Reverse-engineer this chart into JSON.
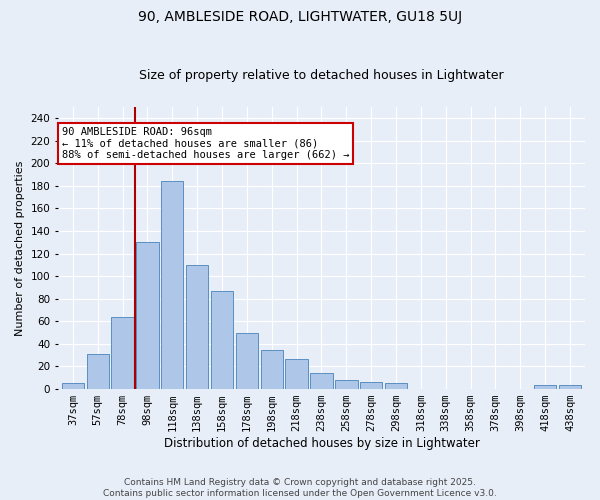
{
  "title": "90, AMBLESIDE ROAD, LIGHTWATER, GU18 5UJ",
  "subtitle": "Size of property relative to detached houses in Lightwater",
  "xlabel": "Distribution of detached houses by size in Lightwater",
  "ylabel": "Number of detached properties",
  "bar_labels": [
    "37sqm",
    "57sqm",
    "78sqm",
    "98sqm",
    "118sqm",
    "138sqm",
    "158sqm",
    "178sqm",
    "198sqm",
    "218sqm",
    "238sqm",
    "258sqm",
    "278sqm",
    "298sqm",
    "318sqm",
    "338sqm",
    "358sqm",
    "378sqm",
    "398sqm",
    "418sqm",
    "438sqm"
  ],
  "bar_values": [
    5,
    31,
    64,
    130,
    184,
    110,
    87,
    50,
    35,
    27,
    14,
    8,
    6,
    5,
    0,
    0,
    0,
    0,
    0,
    4,
    4
  ],
  "bar_color": "#aec6e8",
  "bar_edgecolor": "#5a8fc2",
  "vline_color": "#aa0000",
  "vline_bar_index": 3,
  "annotation_text": "90 AMBLESIDE ROAD: 96sqm\n← 11% of detached houses are smaller (86)\n88% of semi-detached houses are larger (662) →",
  "annotation_box_color": "white",
  "annotation_box_edgecolor": "#cc0000",
  "ylim": [
    0,
    250
  ],
  "yticks": [
    0,
    20,
    40,
    60,
    80,
    100,
    120,
    140,
    160,
    180,
    200,
    220,
    240
  ],
  "background_color": "#e8eef8",
  "grid_color": "white",
  "footer": "Contains HM Land Registry data © Crown copyright and database right 2025.\nContains public sector information licensed under the Open Government Licence v3.0.",
  "title_fontsize": 10,
  "subtitle_fontsize": 9,
  "xlabel_fontsize": 8.5,
  "ylabel_fontsize": 8,
  "tick_fontsize": 7.5,
  "footer_fontsize": 6.5,
  "annotation_fontsize": 7.5
}
